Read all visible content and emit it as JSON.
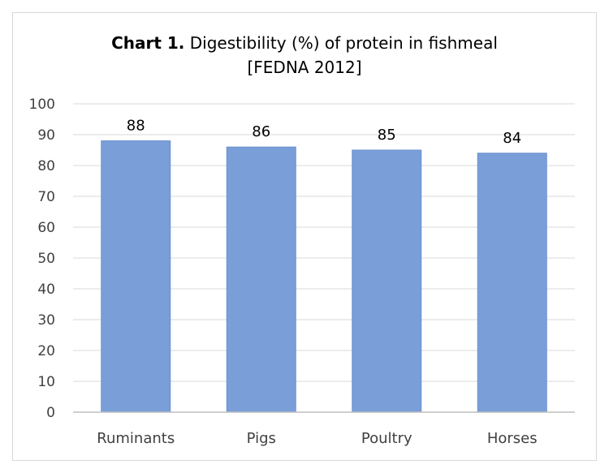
{
  "chart_data": {
    "type": "bar",
    "title_bold": "Chart 1.",
    "title_line1": "Digestibility (%) of protein in fishmeal",
    "title_line2": "[FEDNA 2012]",
    "categories": [
      "Ruminants",
      "Pigs",
      "Poultry",
      "Horses"
    ],
    "values": [
      88,
      86,
      85,
      84
    ],
    "data_labels": [
      "88",
      "86",
      "85",
      "84"
    ],
    "ylim": [
      0,
      100
    ],
    "yticks": [
      0,
      10,
      20,
      30,
      40,
      50,
      60,
      70,
      80,
      90,
      100
    ],
    "xlabel": "",
    "ylabel": "",
    "grid": true,
    "legend": "none",
    "bar_color": "#7a9fd8",
    "bar_edge_color": "#6a8fcf"
  }
}
